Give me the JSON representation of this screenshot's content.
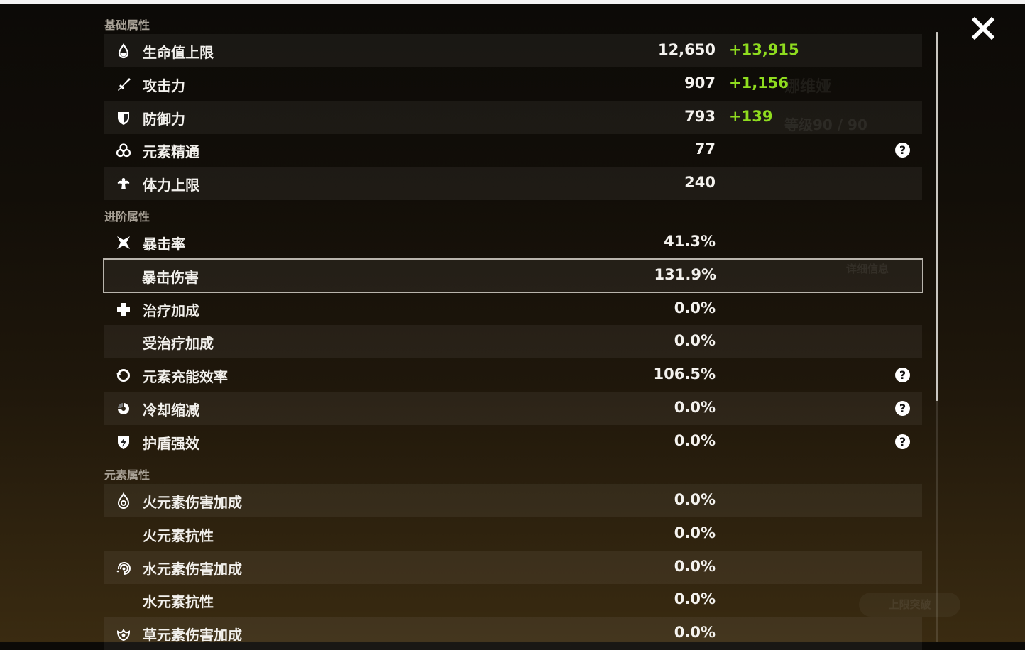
{
  "background": {
    "character_name": "娜维娅",
    "level": "等级90 / 90",
    "details_button": "详细信息",
    "ascend_button": "上限突破"
  },
  "sections": [
    {
      "title": "基础属性",
      "rows": [
        {
          "icon": "hp-drop-icon",
          "label": "生命值上限",
          "value": "12,650",
          "bonus": "+13,915"
        },
        {
          "icon": "sword-icon",
          "label": "攻击力",
          "value": "907",
          "bonus": "+1,156"
        },
        {
          "icon": "shield-icon",
          "label": "防御力",
          "value": "793",
          "bonus": "+139"
        },
        {
          "icon": "elemental-mastery-icon",
          "label": "元素精通",
          "value": "77",
          "help": "?"
        },
        {
          "icon": "stamina-icon",
          "label": "体力上限",
          "value": "240"
        }
      ]
    },
    {
      "title": "进阶属性",
      "rows": [
        {
          "icon": "crit-rate-icon",
          "label": "暴击率",
          "value": "41.3%"
        },
        {
          "icon": "",
          "label": "暴击伤害",
          "value": "131.9%",
          "selected": true
        },
        {
          "icon": "healing-cross-icon",
          "label": "治疗加成",
          "value": "0.0%"
        },
        {
          "icon": "",
          "label": "受治疗加成",
          "value": "0.0%"
        },
        {
          "icon": "energy-recharge-icon",
          "label": "元素充能效率",
          "value": "106.5%",
          "help": "?"
        },
        {
          "icon": "cooldown-icon",
          "label": "冷却缩减",
          "value": "0.0%",
          "help": "?"
        },
        {
          "icon": "shield-strength-icon",
          "label": "护盾强效",
          "value": "0.0%",
          "help": "?"
        }
      ]
    },
    {
      "title": "元素属性",
      "rows": [
        {
          "icon": "pyro-icon",
          "label": "火元素伤害加成",
          "value": "0.0%"
        },
        {
          "icon": "",
          "label": "火元素抗性",
          "value": "0.0%"
        },
        {
          "icon": "hydro-icon",
          "label": "水元素伤害加成",
          "value": "0.0%"
        },
        {
          "icon": "",
          "label": "水元素抗性",
          "value": "0.0%"
        },
        {
          "icon": "dendro-icon",
          "label": "草元素伤害加成",
          "value": "0.0%"
        }
      ]
    }
  ],
  "close_icon": "close-icon"
}
